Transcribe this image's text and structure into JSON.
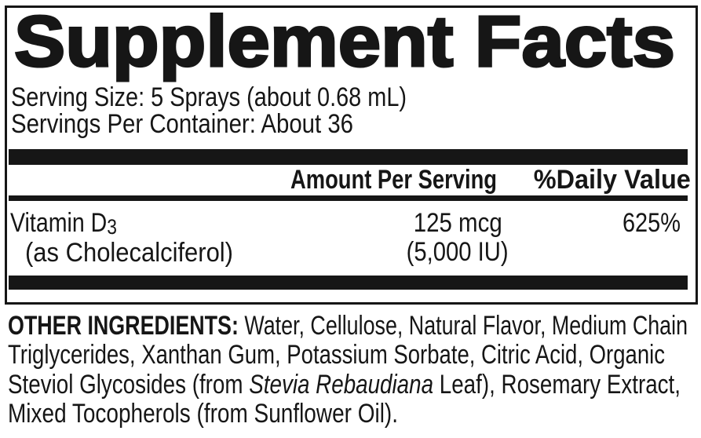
{
  "panel": {
    "title": "Supplement Facts",
    "serving_size": "Serving Size: 5 Sprays (about 0.68 mL)",
    "servings_per_container": "Servings Per Container: About 36",
    "columns": {
      "amount": "Amount Per Serving",
      "daily_value": "%Daily Value"
    },
    "rows": [
      {
        "name": "Vitamin D",
        "name_subscript": "3",
        "name_note": "(as Cholecalciferol)",
        "amount": "125 mcg",
        "amount_note": "(5,000 IU)",
        "daily_value": "625%"
      }
    ]
  },
  "other_ingredients": {
    "lines": [
      [
        {
          "t": "OTHER INGREDIENTS:",
          "b": true
        },
        {
          "t": " Water, Cellulose, Natural Flavor, Medium Chain"
        }
      ],
      [
        {
          "t": "Triglycerides, Xanthan Gum, Potassium Sorbate, Citric Acid, Organic"
        }
      ],
      [
        {
          "t": "Steviol Glycosides (from "
        },
        {
          "t": "Stevia Rebaudiana",
          "i": true
        },
        {
          "t": " Leaf), Rosemary Extract,"
        }
      ],
      [
        {
          "t": "Mixed Tocopherols (from Sunflower Oil)."
        }
      ]
    ]
  },
  "colors": {
    "ink": "#161616",
    "background": "#ffffff"
  }
}
